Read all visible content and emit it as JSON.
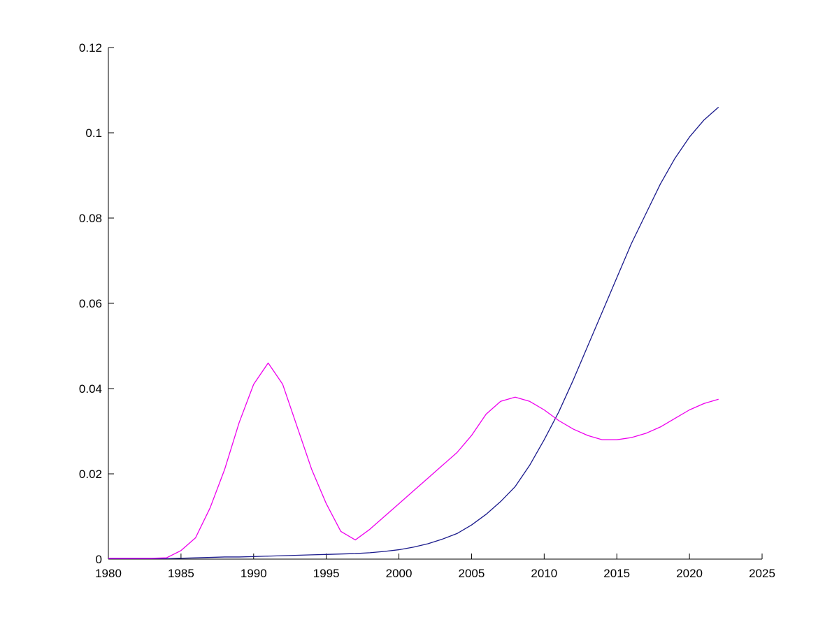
{
  "figure": {
    "background": "#ffffff",
    "axis_color": "#000000"
  },
  "chart_data": {
    "type": "line",
    "title": "",
    "xlabel": "",
    "ylabel": "",
    "grid": false,
    "legend": null,
    "xlim": [
      1980,
      2025
    ],
    "ylim": [
      0,
      0.12
    ],
    "x_ticks": [
      1980,
      1985,
      1990,
      1995,
      2000,
      2005,
      2010,
      2015,
      2020,
      2025
    ],
    "x_tick_labels": [
      "1980",
      "1985",
      "1990",
      "1995",
      "2000",
      "2005",
      "2010",
      "2015",
      "2020",
      "2025"
    ],
    "y_ticks": [
      0,
      0.02,
      0.04,
      0.06,
      0.08,
      0.1,
      0.12
    ],
    "y_tick_labels": [
      "0",
      "0.02",
      "0.04",
      "0.06",
      "0.08",
      "0.1",
      "0.12"
    ],
    "x": [
      1980,
      1981,
      1982,
      1983,
      1984,
      1985,
      1986,
      1987,
      1988,
      1989,
      1990,
      1991,
      1992,
      1993,
      1994,
      1995,
      1996,
      1997,
      1998,
      1999,
      2000,
      2001,
      2002,
      2003,
      2004,
      2005,
      2006,
      2007,
      2008,
      2009,
      2010,
      2011,
      2012,
      2013,
      2014,
      2015,
      2016,
      2017,
      2018,
      2019,
      2020,
      2021,
      2022
    ],
    "series": [
      {
        "name": "blue-line",
        "color": "#1a1a8c",
        "values": [
          0.0001,
          0.0001,
          0.0001,
          0.0001,
          0.0001,
          0.0002,
          0.0003,
          0.0004,
          0.0005,
          0.0005,
          0.0006,
          0.0007,
          0.0008,
          0.0009,
          0.001,
          0.0011,
          0.0012,
          0.0013,
          0.0015,
          0.0018,
          0.0022,
          0.0028,
          0.0036,
          0.0047,
          0.006,
          0.008,
          0.0105,
          0.0135,
          0.017,
          0.022,
          0.028,
          0.0345,
          0.042,
          0.05,
          0.058,
          0.066,
          0.074,
          0.081,
          0.088,
          0.094,
          0.099,
          0.103,
          0.106
        ]
      },
      {
        "name": "magenta-line",
        "color": "#ee00ee",
        "values": [
          0.0002,
          0.0002,
          0.0002,
          0.0002,
          0.0003,
          0.002,
          0.005,
          0.012,
          0.021,
          0.032,
          0.041,
          0.046,
          0.041,
          0.031,
          0.021,
          0.013,
          0.0065,
          0.0045,
          0.007,
          0.01,
          0.013,
          0.016,
          0.019,
          0.022,
          0.025,
          0.029,
          0.034,
          0.037,
          0.038,
          0.037,
          0.035,
          0.0325,
          0.0305,
          0.029,
          0.028,
          0.028,
          0.0285,
          0.0295,
          0.031,
          0.033,
          0.035,
          0.0365,
          0.0375
        ]
      }
    ]
  }
}
